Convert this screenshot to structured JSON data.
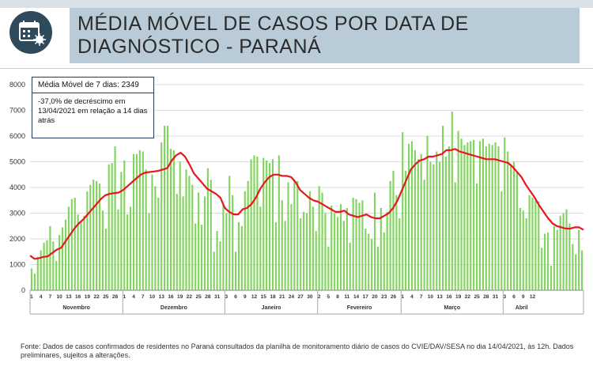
{
  "header": {
    "title": "MÉDIA MÓVEL DE CASOS POR DATA DE DIAGNÓSTICO - PARANÁ",
    "icon": "calendar-virus-icon"
  },
  "info_box": {
    "moving_average": "Média Móvel de 7 dias: 2349",
    "change_note": "-37,0% de decréscimo em 13/04/2021  em relação a 14 dias atrás"
  },
  "source_note": "Fonte: Dados de casos confirmados de residentes no Paraná consultados da planilha de monitoramento diário de casos do CVIE/DAV/SESA no dia 14/04/2021, às 12h. Dados preliminares, sujeitos a alterações.",
  "colors": {
    "bars": "#82d35f",
    "line": "#e8171d",
    "header_bg": "#b9cbd6",
    "icon_bg": "#2f4a5c",
    "box_border": "#1f3a5c"
  },
  "chart_data": {
    "type": "bar",
    "ylim": [
      0,
      8000
    ],
    "yticks": [
      0,
      1000,
      2000,
      3000,
      4000,
      5000,
      6000,
      7000,
      8000
    ],
    "grid": true,
    "months": [
      {
        "label": "Novembro",
        "days": [
          "1",
          "4",
          "7",
          "10",
          "13",
          "16",
          "19",
          "22",
          "25",
          "28"
        ]
      },
      {
        "label": "Dezembro",
        "days": [
          "1",
          "4",
          "7",
          "10",
          "13",
          "16",
          "19",
          "22",
          "25",
          "28",
          "31"
        ]
      },
      {
        "label": "Janeiro",
        "days": [
          "3",
          "6",
          "9",
          "12",
          "15",
          "18",
          "21",
          "24",
          "27",
          "30"
        ]
      },
      {
        "label": "Fevereiro",
        "days": [
          "2",
          "5",
          "8",
          "11",
          "14",
          "17",
          "20",
          "23",
          "26"
        ]
      },
      {
        "label": "Março",
        "days": [
          "1",
          "4",
          "7",
          "10",
          "13",
          "16",
          "19",
          "22",
          "25",
          "28",
          "31"
        ]
      },
      {
        "label": "Abril",
        "days": [
          "3",
          "6",
          "9",
          "12"
        ]
      }
    ],
    "daily_cases": [
      850,
      650,
      1300,
      1550,
      1850,
      1950,
      2500,
      1900,
      1150,
      2150,
      2450,
      2750,
      3250,
      3550,
      3600,
      2950,
      2650,
      2900,
      3850,
      4100,
      4300,
      4250,
      4150,
      3100,
      2400,
      4900,
      4950,
      5600,
      3150,
      4600,
      5050,
      2950,
      3250,
      5300,
      5300,
      5450,
      5400,
      4700,
      3000,
      4500,
      4050,
      3600,
      5750,
      6400,
      6400,
      5500,
      5450,
      3750,
      5000,
      3650,
      4700,
      4450,
      4100,
      2600,
      3800,
      2550,
      3650,
      4750,
      4300,
      1500,
      2300,
      1900,
      3350,
      3000,
      4450,
      3700,
      1500,
      2650,
      2500,
      3850,
      4250,
      5100,
      5250,
      5200,
      3250,
      5150,
      5050,
      4950,
      5100,
      2650,
      5250,
      3500,
      2700,
      4200,
      3350,
      4300,
      4250,
      2800,
      3050,
      3000,
      3850,
      3250,
      2300,
      4050,
      3800,
      3000,
      1700,
      3300,
      3000,
      2850,
      3350,
      2700,
      3200,
      1850,
      3600,
      3550,
      3400,
      3500,
      2400,
      2200,
      2000,
      3800,
      1700,
      3200,
      2250,
      3050,
      4250,
      4650,
      3700,
      2800,
      6150,
      4650,
      5700,
      5800,
      5450,
      5100,
      5300,
      4300,
      6000,
      5000,
      4900,
      5400,
      5000,
      6400,
      5200,
      5600,
      6950,
      4200,
      6200,
      5900,
      5650,
      5750,
      5800,
      5850,
      4150,
      5800,
      5900,
      5600,
      5700,
      5650,
      5750,
      5600,
      3850,
      5950,
      5400,
      4900,
      5000,
      4600,
      3200,
      3100,
      2800,
      3700,
      3600,
      3500,
      3450,
      1650,
      2200,
      2250,
      950,
      2500,
      2350,
      2900,
      3000,
      3150,
      2600,
      1800,
      1400,
      2350,
      1550
    ],
    "moving_average_series": [
      1350,
      1220,
      1250,
      1300,
      1320,
      1450,
      1580,
      1650,
      1900,
      2150,
      2400,
      2600,
      2750,
      2950,
      3150,
      3350,
      3550,
      3700,
      3750,
      3780,
      3800,
      3900,
      4050,
      4200,
      4350,
      4500,
      4580,
      4600,
      4620,
      4650,
      4700,
      4750,
      5050,
      5250,
      5350,
      5200,
      4900,
      4550,
      4350,
      4150,
      3950,
      3850,
      3750,
      3600,
      3200,
      3050,
      2950,
      2950,
      3150,
      3200,
      3350,
      3600,
      3950,
      4200,
      4400,
      4500,
      4500,
      4450,
      4450,
      4400,
      4200,
      3900,
      3750,
      3600,
      3500,
      3450,
      3350,
      3250,
      3150,
      3050,
      3050,
      3100,
      2950,
      2900,
      2850,
      2900,
      2950,
      2850,
      2800,
      2800,
      2900,
      3000,
      3200,
      3500,
      3900,
      4300,
      4700,
      4900,
      5050,
      5100,
      5200,
      5200,
      5250,
      5300,
      5450,
      5450,
      5500,
      5400,
      5350,
      5300,
      5250,
      5200,
      5150,
      5100,
      5100,
      5100,
      5050,
      5000,
      4950,
      4800,
      4600,
      4400,
      4100,
      3850,
      3600,
      3300,
      3050,
      2800,
      2600,
      2500,
      2450,
      2400,
      2400,
      2450,
      2450,
      2350
    ]
  }
}
